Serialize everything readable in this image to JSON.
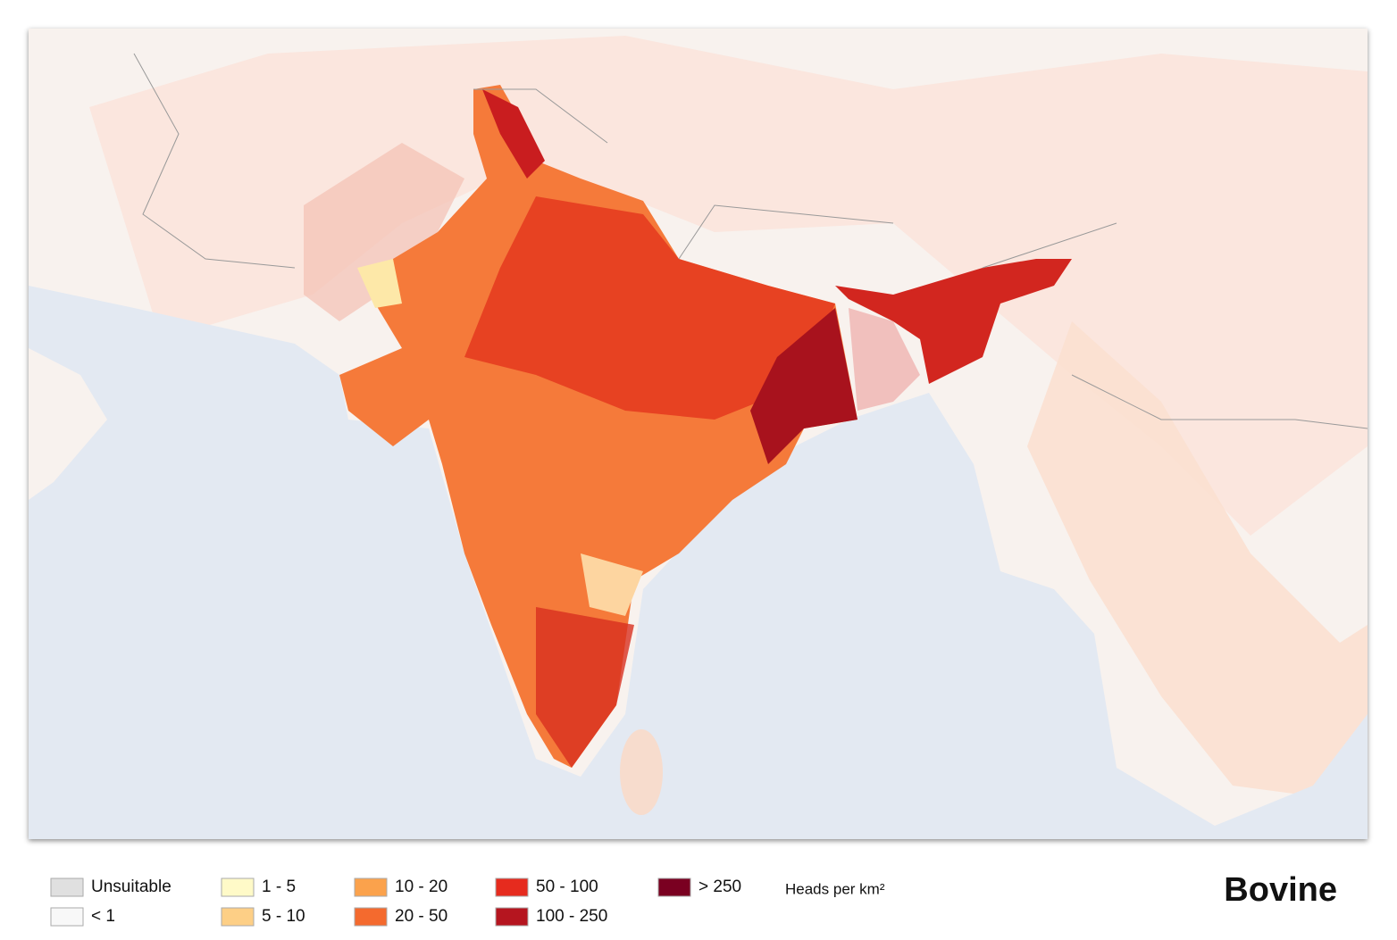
{
  "title": "Bovine",
  "legend": {
    "unit": "Heads per km²",
    "items": [
      {
        "label": "Unsuitable",
        "color": "#e0e0e0"
      },
      {
        "label": "< 1",
        "color": "#f8f8f8"
      },
      {
        "label": "1 - 5",
        "color": "#fffac8"
      },
      {
        "label": "5 - 10",
        "color": "#fdcf86"
      },
      {
        "label": "10 - 20",
        "color": "#fba24c"
      },
      {
        "label": "20 - 50",
        "color": "#f46a2e"
      },
      {
        "label": "50 - 100",
        "color": "#e62b1e"
      },
      {
        "label": "100 - 250",
        "color": "#b5151f"
      },
      {
        "label": "> 250",
        "color": "#7a0021"
      }
    ]
  }
}
